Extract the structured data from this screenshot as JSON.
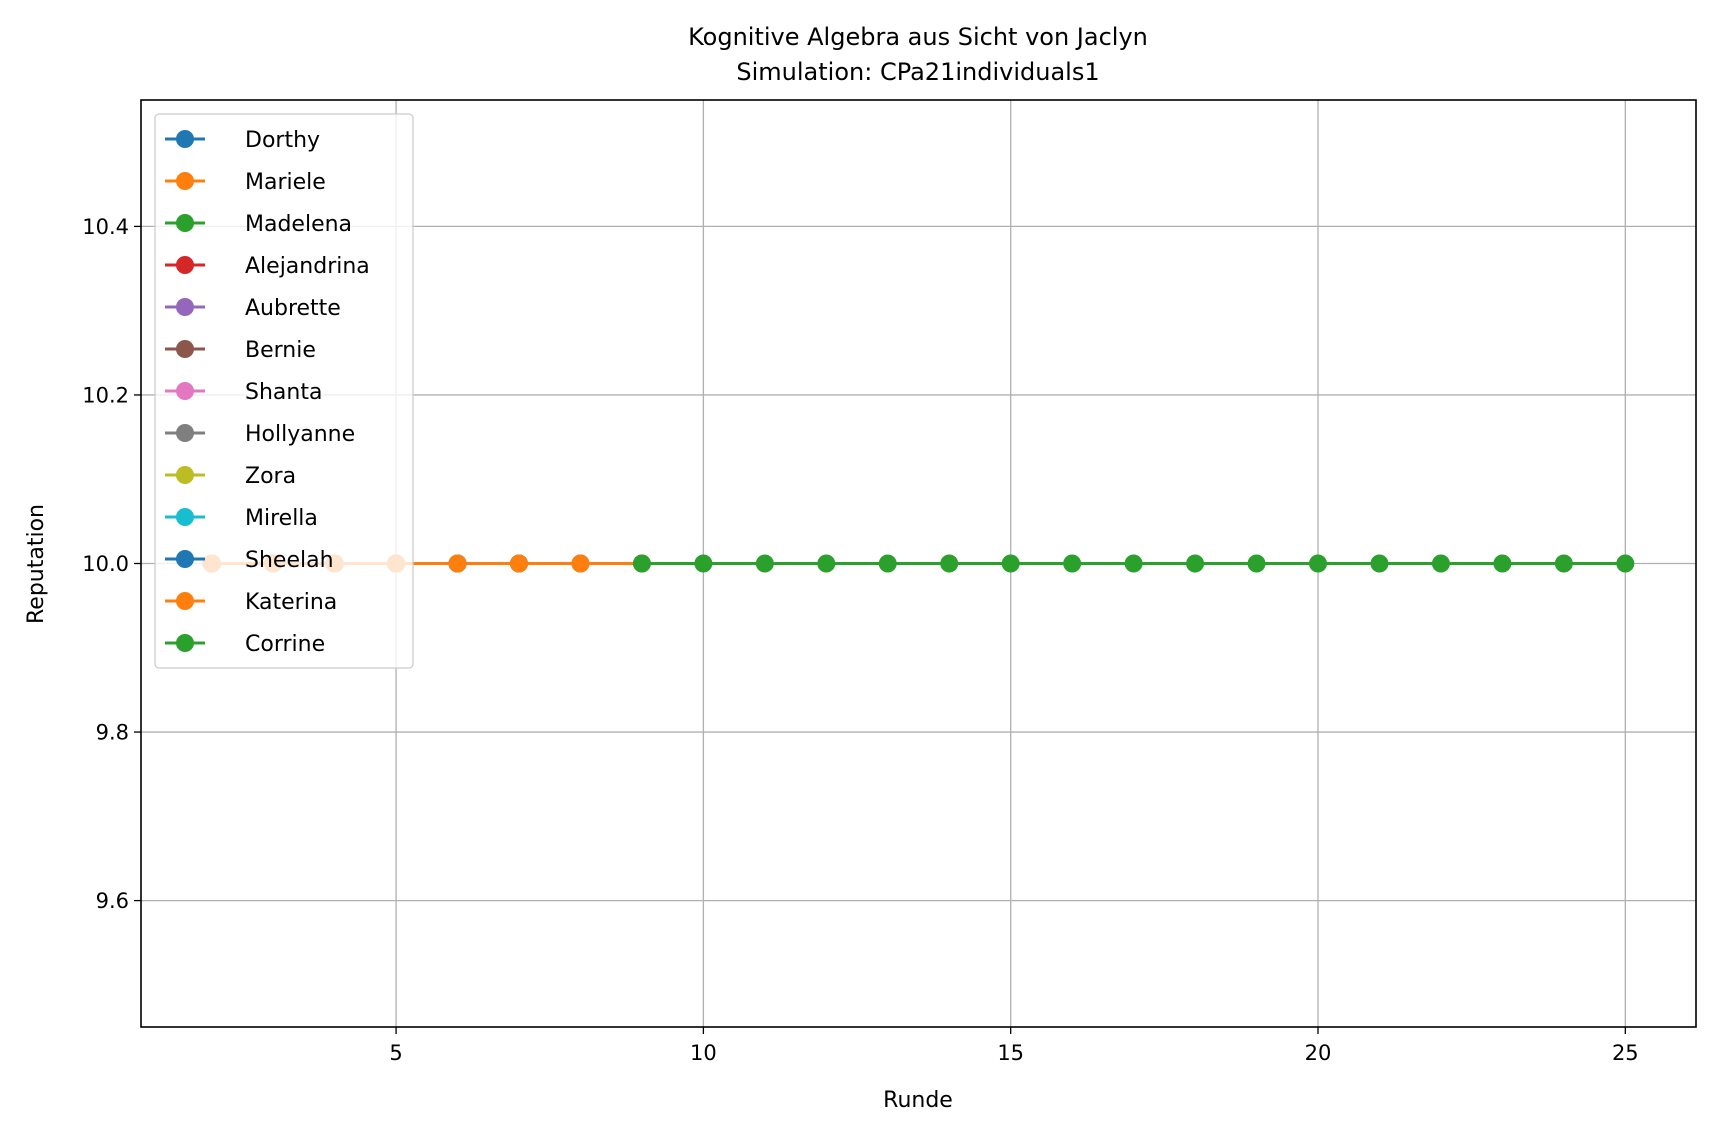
{
  "chart_data": {
    "type": "line",
    "title": "Kognitive Algebra aus Sicht von Jaclyn",
    "subtitle": "Simulation: CPa21individuals1",
    "xlabel": "Runde",
    "ylabel": "Reputation",
    "xlim": [
      0.85,
      26.15
    ],
    "ylim": [
      9.45,
      10.55
    ],
    "xticks": [
      5,
      10,
      15,
      20,
      25
    ],
    "yticks": [
      9.6,
      9.8,
      10.0,
      10.2,
      10.4
    ],
    "xtick_labels": [
      "5",
      "10",
      "15",
      "20",
      "25"
    ],
    "ytick_labels": [
      "9.6",
      "9.8",
      "10.0",
      "10.2",
      "10.4"
    ],
    "grid": true,
    "legend_position": "upper-left",
    "series": [
      {
        "name": "Dorthy",
        "color": "#1f77b4",
        "x": [
          2
        ],
        "y": [
          10.0
        ]
      },
      {
        "name": "Mariele",
        "color": "#ff7f0e",
        "x": [
          2,
          3
        ],
        "y": [
          10.0,
          10.0
        ]
      },
      {
        "name": "Madelena",
        "color": "#2ca02c",
        "x": [
          2,
          3
        ],
        "y": [
          10.0,
          10.0
        ]
      },
      {
        "name": "Alejandrina",
        "color": "#d62728",
        "x": [
          2,
          3,
          4
        ],
        "y": [
          10.0,
          10.0,
          10.0
        ]
      },
      {
        "name": "Aubrette",
        "color": "#9467bd",
        "x": [
          2,
          3,
          4
        ],
        "y": [
          10.0,
          10.0,
          10.0
        ]
      },
      {
        "name": "Bernie",
        "color": "#8c564b",
        "x": [
          2,
          3,
          4,
          5
        ],
        "y": [
          10.0,
          10.0,
          10.0,
          10.0
        ]
      },
      {
        "name": "Shanta",
        "color": "#e377c2",
        "x": [
          2,
          3,
          4,
          5
        ],
        "y": [
          10.0,
          10.0,
          10.0,
          10.0
        ]
      },
      {
        "name": "Hollyanne",
        "color": "#7f7f7f",
        "x": [
          2,
          3,
          4,
          5,
          6
        ],
        "y": [
          10.0,
          10.0,
          10.0,
          10.0,
          10.0
        ]
      },
      {
        "name": "Zora",
        "color": "#bcbd22",
        "x": [
          2,
          3,
          4,
          5,
          6
        ],
        "y": [
          10.0,
          10.0,
          10.0,
          10.0,
          10.0
        ]
      },
      {
        "name": "Mirella",
        "color": "#17becf",
        "x": [
          2,
          3,
          4,
          5,
          6,
          7
        ],
        "y": [
          10.0,
          10.0,
          10.0,
          10.0,
          10.0,
          10.0
        ]
      },
      {
        "name": "Sheelah",
        "color": "#1f77b4",
        "x": [
          2,
          3,
          4,
          5,
          6,
          7,
          8
        ],
        "y": [
          10.0,
          10.0,
          10.0,
          10.0,
          10.0,
          10.0,
          10.0
        ]
      },
      {
        "name": "Katerina",
        "color": "#ff7f0e",
        "x": [
          2,
          3,
          4,
          5,
          6,
          7,
          8,
          9
        ],
        "y": [
          10.0,
          10.0,
          10.0,
          10.0,
          10.0,
          10.0,
          10.0,
          10.0
        ]
      },
      {
        "name": "Corrine",
        "color": "#2ca02c",
        "x": [
          9,
          10,
          11,
          12,
          13,
          14,
          15,
          16,
          17,
          18,
          19,
          20,
          21,
          22,
          23,
          24,
          25
        ],
        "y": [
          10.0,
          10.0,
          10.0,
          10.0,
          10.0,
          10.0,
          10.0,
          10.0,
          10.0,
          10.0,
          10.0,
          10.0,
          10.0,
          10.0,
          10.0,
          10.0,
          10.0
        ]
      }
    ]
  }
}
